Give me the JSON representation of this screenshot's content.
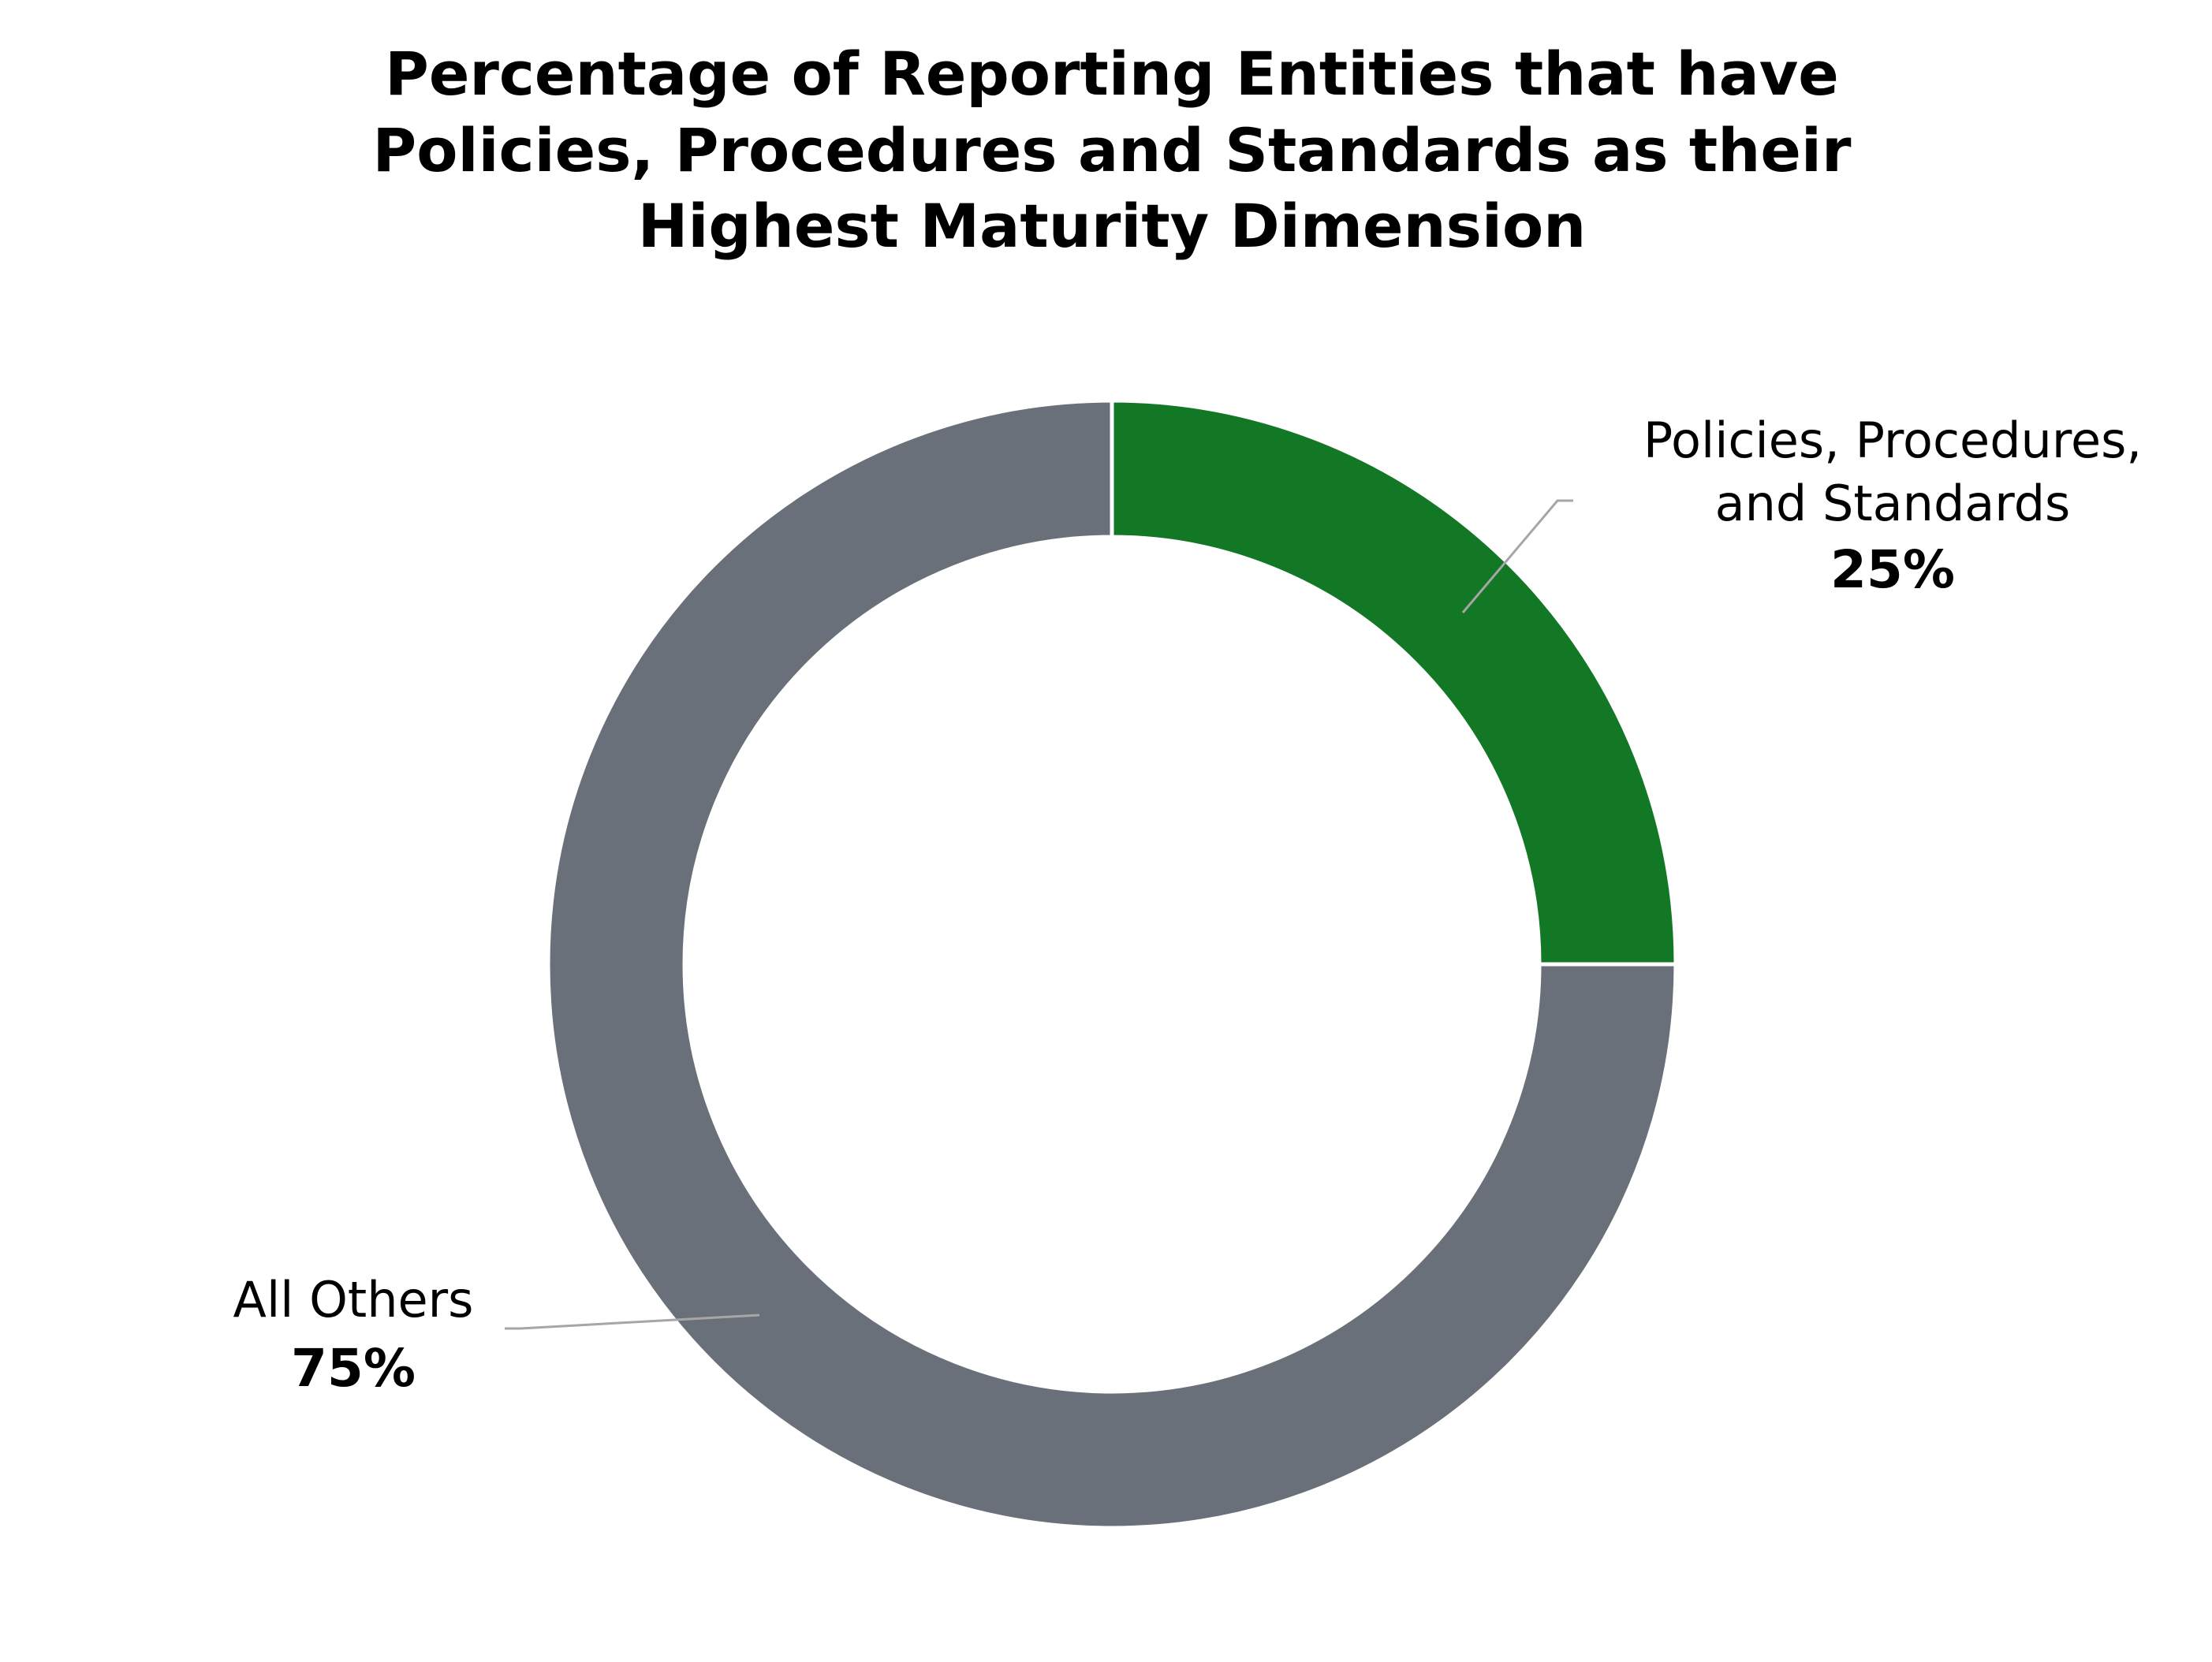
{
  "chart_data": {
    "type": "pie",
    "style": "donut",
    "title": [
      "Percentage of Reporting Entities that have",
      "Policies, Procedures and Standards as their",
      "Highest Maturity Dimension"
    ],
    "slices": [
      {
        "label_lines": [
          "Policies, Procedures,",
          "and Standards"
        ],
        "value": 25,
        "value_label": "25%",
        "color": "#127826"
      },
      {
        "label_lines": [
          "All Others"
        ],
        "value": 75,
        "value_label": "75%",
        "color": "#6a7079"
      }
    ],
    "start_angle": "12 o'clock",
    "direction": "clockwise",
    "legend": "none"
  }
}
